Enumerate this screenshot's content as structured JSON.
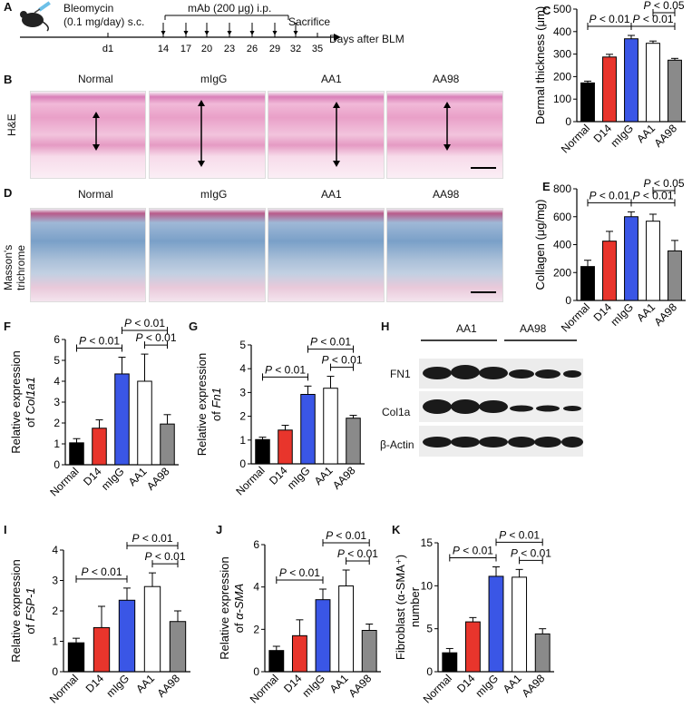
{
  "panels": {
    "A": {
      "label": "A",
      "drug": "Bleomycin",
      "dose": "(0.1 mg/day) s.c.",
      "mab": "mAb (200 μg) i.p.",
      "sacrifice": "Sacrifice",
      "days_label": "Days after BLM",
      "days": [
        "d1",
        "14",
        "17",
        "20",
        "23",
        "26",
        "29",
        "32",
        "35"
      ]
    },
    "B": {
      "label": "B",
      "row_label": "H&E",
      "columns": [
        "Normal",
        "mIgG",
        "AA1",
        "AA98"
      ]
    },
    "D": {
      "label": "D",
      "row_label_1": "Masson's",
      "row_label_2": "trichrome",
      "columns": [
        "Normal",
        "mIgG",
        "AA1",
        "AA98"
      ]
    },
    "H": {
      "label": "H",
      "groups": [
        "AA1",
        "AA98"
      ],
      "bands": [
        "FN1",
        "Col1a",
        "β-Actin"
      ]
    }
  },
  "colors": {
    "Normal": "#000000",
    "D14": "#e8352c",
    "mIgG": "#3a56e6",
    "AA1": "#ffffff",
    "AA98": "#8a8a8a"
  },
  "chart_data": [
    {
      "id": "C",
      "type": "bar",
      "categories": [
        "Normal",
        "D14",
        "mIgG",
        "AA1",
        "AA98"
      ],
      "values": [
        172,
        287,
        368,
        348,
        273
      ],
      "errors": [
        8,
        12,
        15,
        10,
        8
      ],
      "ylabel": "Dermal thickness (μm)",
      "ylim": [
        0,
        500
      ],
      "yticks": [
        0,
        100,
        200,
        300,
        400,
        500
      ],
      "annotations": [
        {
          "from": 0,
          "to": 2,
          "text": "P < 0.01"
        },
        {
          "from": 2,
          "to": 4,
          "text": "P < 0.01"
        },
        {
          "from": 3,
          "to": 4,
          "text": "P < 0.05"
        }
      ]
    },
    {
      "id": "E",
      "type": "bar",
      "categories": [
        "Normal",
        "D14",
        "mIgG",
        "AA1",
        "AA98"
      ],
      "values": [
        243,
        425,
        600,
        568,
        355
      ],
      "errors": [
        45,
        70,
        35,
        50,
        75
      ],
      "ylabel": "Collagen (μg/mg)",
      "ylim": [
        0,
        800
      ],
      "yticks": [
        0,
        200,
        400,
        600,
        800
      ],
      "annotations": [
        {
          "from": 0,
          "to": 2,
          "text": "P < 0.01"
        },
        {
          "from": 2,
          "to": 4,
          "text": "P < 0.01"
        },
        {
          "from": 3,
          "to": 4,
          "text": "P < 0.05"
        }
      ]
    },
    {
      "id": "F",
      "type": "bar",
      "categories": [
        "Normal",
        "D14",
        "mIgG",
        "AA1",
        "AA98"
      ],
      "values": [
        1.05,
        1.75,
        4.35,
        4.0,
        1.95
      ],
      "errors": [
        0.2,
        0.4,
        0.8,
        1.3,
        0.45
      ],
      "ylabel": "Relative expression of Col1a1",
      "ylim": [
        0,
        6
      ],
      "yticks": [
        0,
        1,
        2,
        3,
        4,
        5,
        6
      ],
      "annotations": [
        {
          "from": 0,
          "to": 2,
          "text": "P < 0.01"
        },
        {
          "from": 3,
          "to": 4,
          "text": "P < 0.01"
        },
        {
          "from": 2,
          "to": 4,
          "text": "P < 0.01"
        }
      ]
    },
    {
      "id": "G",
      "type": "bar",
      "categories": [
        "Normal",
        "D14",
        "mIgG",
        "AA1",
        "AA98"
      ],
      "values": [
        1.02,
        1.42,
        2.92,
        3.18,
        1.92
      ],
      "errors": [
        0.1,
        0.2,
        0.35,
        0.5,
        0.12
      ],
      "ylabel": "Relative expression of Fn1",
      "ylim": [
        0,
        5
      ],
      "yticks": [
        0,
        1,
        2,
        3,
        4,
        5
      ],
      "annotations": [
        {
          "from": 0,
          "to": 2,
          "text": "P < 0.01"
        },
        {
          "from": 3,
          "to": 4,
          "text": "P < 0.01"
        },
        {
          "from": 2,
          "to": 4,
          "text": "P < 0.01"
        }
      ]
    },
    {
      "id": "I",
      "type": "bar",
      "categories": [
        "Normal",
        "D14",
        "mIgG",
        "AA1",
        "AA98"
      ],
      "values": [
        0.95,
        1.45,
        2.35,
        2.8,
        1.65
      ],
      "errors": [
        0.15,
        0.7,
        0.4,
        0.45,
        0.35
      ],
      "ylabel": "Relative expression of FSP-1",
      "ylim": [
        0,
        4
      ],
      "yticks": [
        0,
        1,
        2,
        3,
        4
      ],
      "annotations": [
        {
          "from": 0,
          "to": 2,
          "text": "P < 0.01"
        },
        {
          "from": 3,
          "to": 4,
          "text": "P < 0.01"
        },
        {
          "from": 2,
          "to": 4,
          "text": "P < 0.01"
        }
      ]
    },
    {
      "id": "J",
      "type": "bar",
      "categories": [
        "Normal",
        "D14",
        "mIgG",
        "AA1",
        "AA98"
      ],
      "values": [
        1.0,
        1.7,
        3.4,
        4.05,
        1.95
      ],
      "errors": [
        0.2,
        0.75,
        0.5,
        0.75,
        0.3
      ],
      "ylabel": "Relative expression of α-SMA",
      "ylim": [
        0,
        6
      ],
      "yticks": [
        0,
        2,
        4,
        6
      ],
      "annotations": [
        {
          "from": 0,
          "to": 2,
          "text": "P < 0.01"
        },
        {
          "from": 3,
          "to": 4,
          "text": "P < 0.01"
        },
        {
          "from": 2,
          "to": 4,
          "text": "P < 0.01"
        }
      ]
    },
    {
      "id": "K",
      "type": "bar",
      "categories": [
        "Normal",
        "D14",
        "mIgG",
        "AA1",
        "AA98"
      ],
      "values": [
        2.2,
        5.8,
        11.1,
        11.0,
        4.4
      ],
      "errors": [
        0.5,
        0.5,
        1.1,
        0.9,
        0.6
      ],
      "ylabel": "Fibroblast (α-SMA⁺) number",
      "ylim": [
        0,
        15
      ],
      "yticks": [
        0,
        5,
        10,
        15
      ],
      "annotations": [
        {
          "from": 0,
          "to": 2,
          "text": "P < 0.01"
        },
        {
          "from": 3,
          "to": 4,
          "text": "P < 0.01"
        },
        {
          "from": 2,
          "to": 4,
          "text": "P < 0.01"
        }
      ]
    }
  ]
}
